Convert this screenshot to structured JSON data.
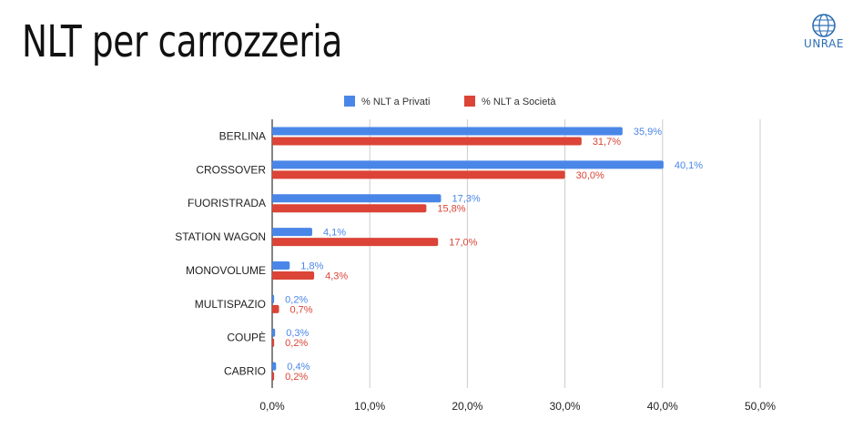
{
  "page": {
    "title": "NLT per carrozzeria",
    "logo_text": "UNRAE"
  },
  "chart_data": {
    "type": "bar",
    "orientation": "horizontal",
    "title": "",
    "xlabel": "",
    "ylabel": "",
    "categories": [
      "BERLINA",
      "CROSSOVER",
      "FUORISTRADA",
      "STATION WAGON",
      "MONOVOLUME",
      "MULTISPAZIO",
      "COUPÈ",
      "CABRIO"
    ],
    "series": [
      {
        "name": "% NLT a Privati",
        "color": "#4a86e8",
        "values": [
          35.9,
          40.1,
          17.3,
          4.1,
          1.8,
          0.2,
          0.3,
          0.4
        ],
        "labels": [
          "35,9%",
          "40,1%",
          "17,3%",
          "4,1%",
          "1,8%",
          "0,2%",
          "0,3%",
          "0,4%"
        ]
      },
      {
        "name": "% NLT a Società",
        "color": "#db4437",
        "values": [
          31.7,
          30.0,
          15.8,
          17.0,
          4.3,
          0.7,
          0.2,
          0.2
        ],
        "labels": [
          "31,7%",
          "30,0%",
          "15,8%",
          "17,0%",
          "4,3%",
          "0,7%",
          "0,2%",
          "0,2%"
        ]
      }
    ],
    "xlim": [
      0,
      50
    ],
    "ticks": [
      0,
      10,
      20,
      30,
      40,
      50
    ],
    "tick_labels": [
      "0,0%",
      "10,0%",
      "20,0%",
      "30,0%",
      "40,0%",
      "50,0%"
    ],
    "grid": true,
    "legend_position": "top-center"
  }
}
